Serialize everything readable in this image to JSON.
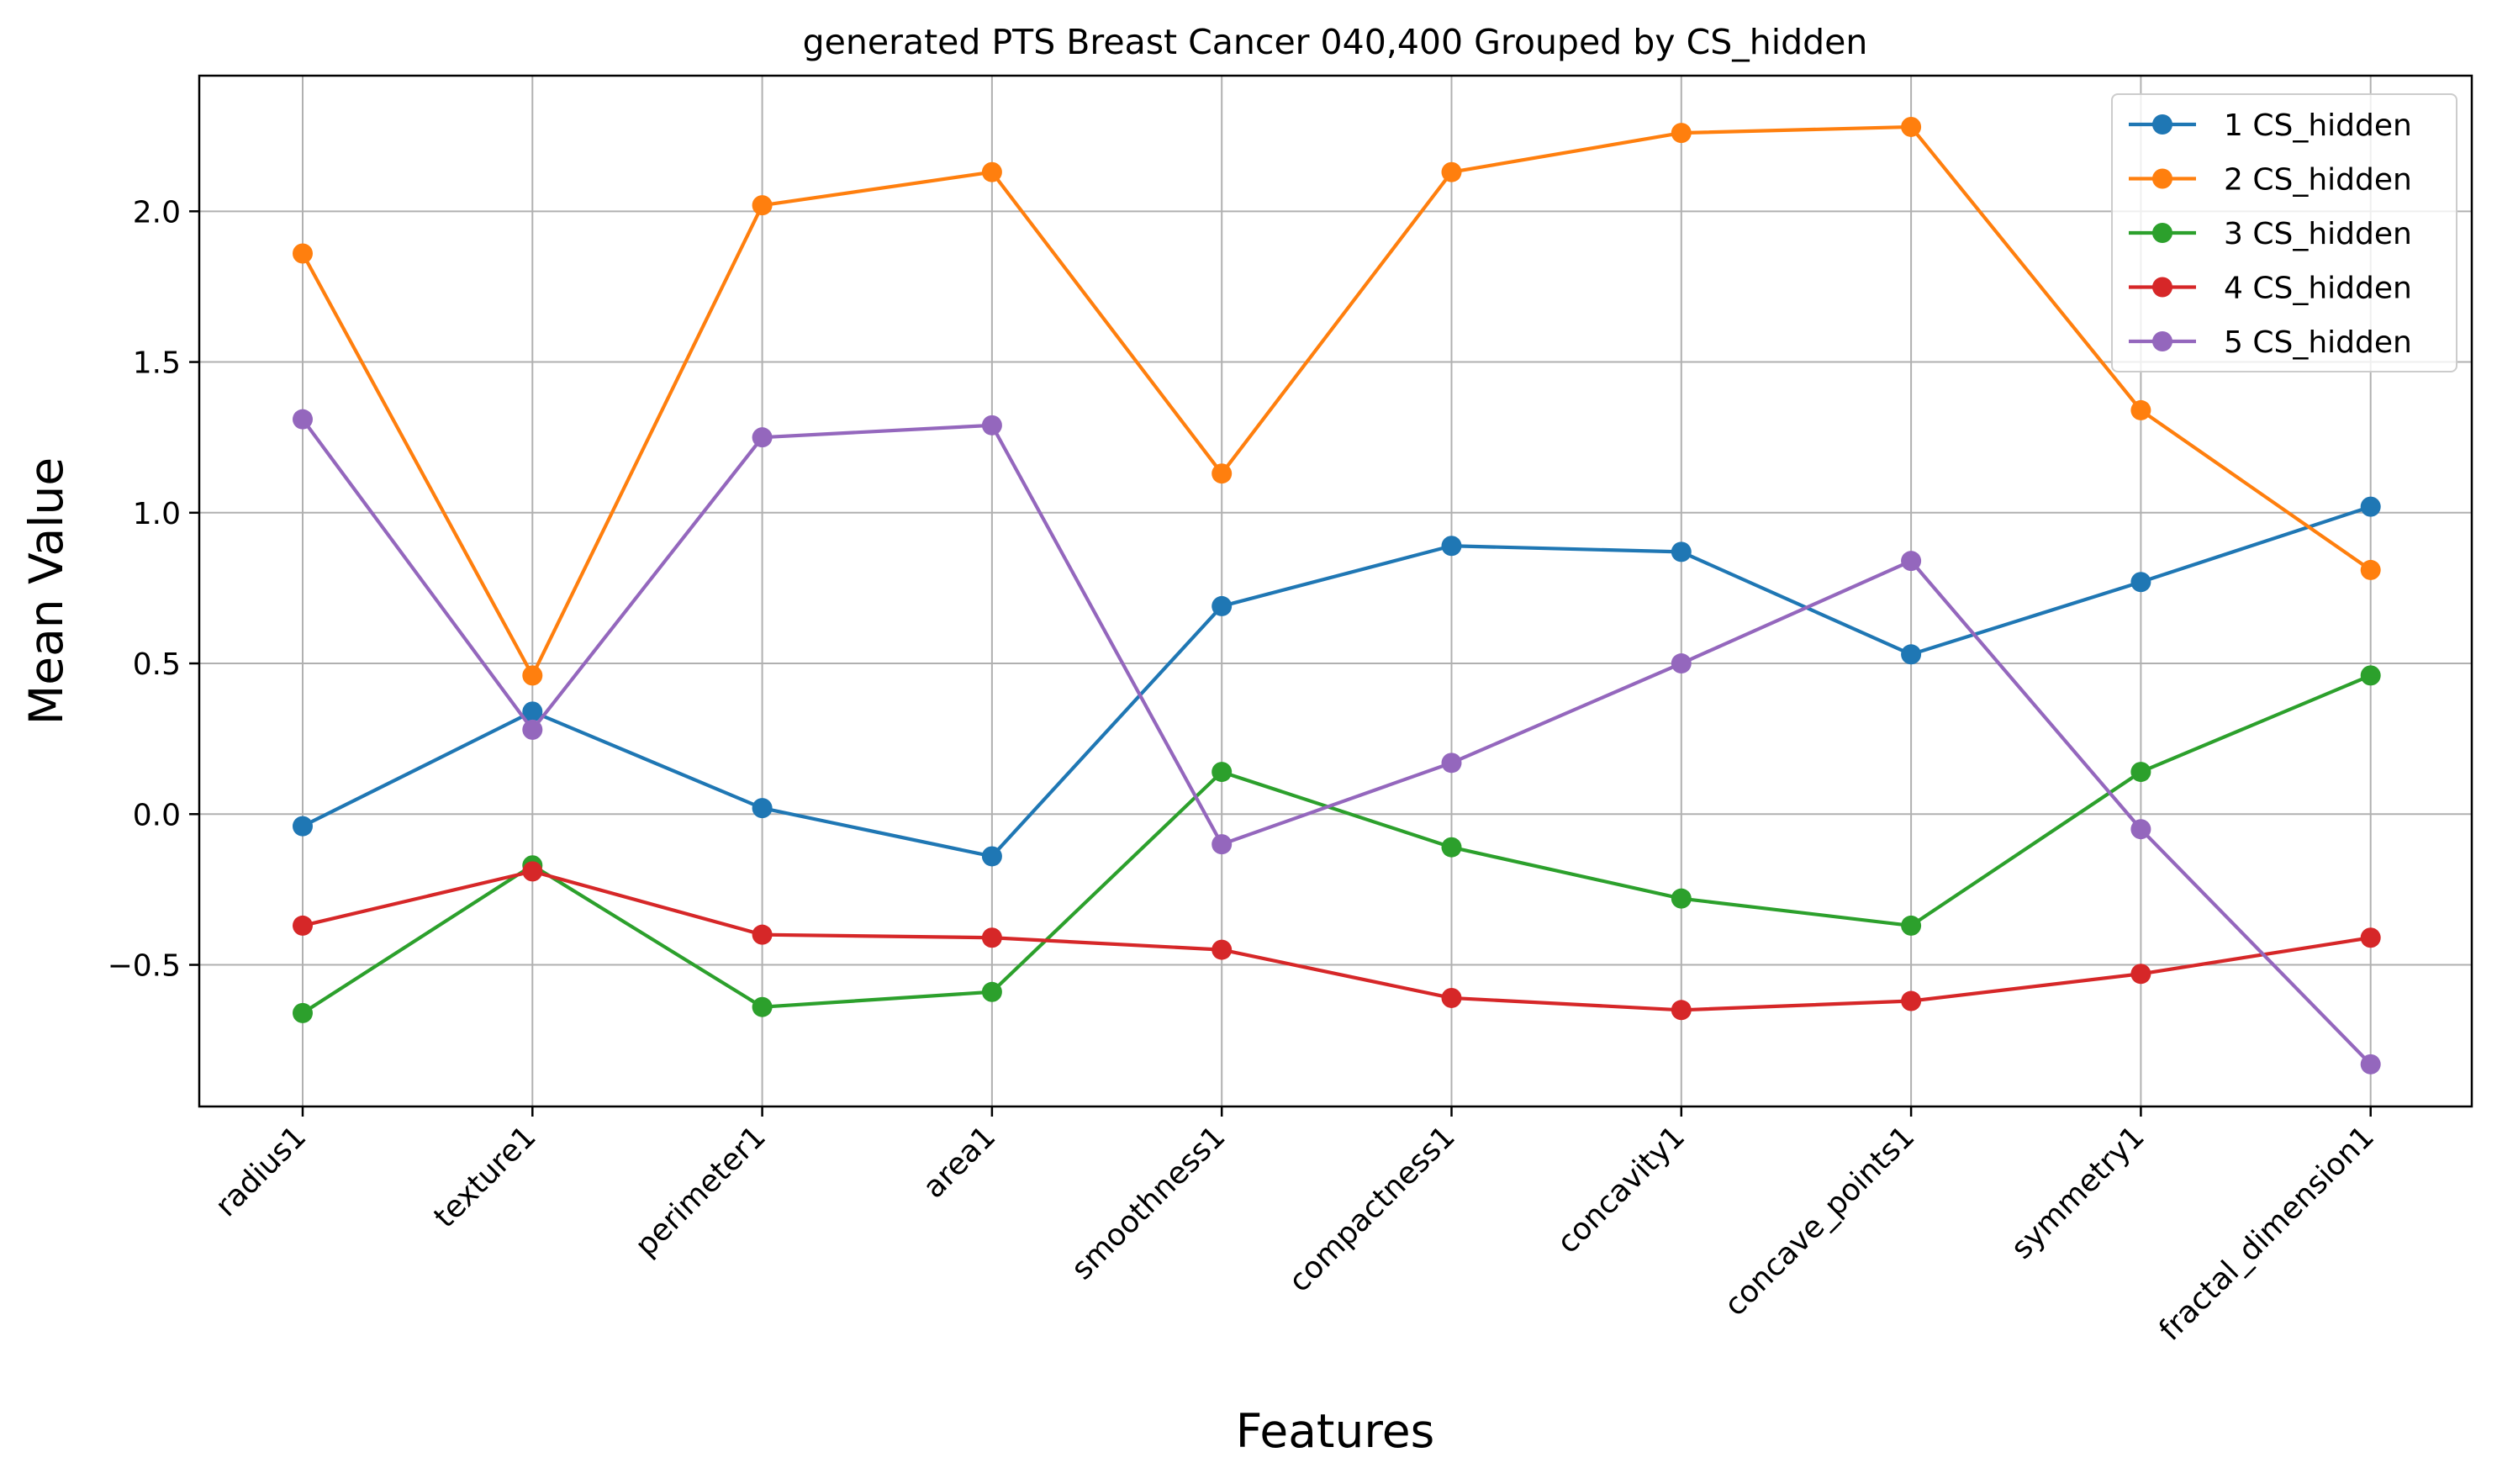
{
  "chart_data": {
    "type": "line",
    "title": "generated PTS Breast Cancer 040,400 Grouped by CS_hidden",
    "xlabel": "Features",
    "ylabel": "Mean Value",
    "categories": [
      "radius1",
      "texture1",
      "perimeter1",
      "area1",
      "smoothness1",
      "compactness1",
      "concavity1",
      "concave_points1",
      "symmetry1",
      "fractal_dimension1"
    ],
    "y_ticks": [
      -0.5,
      0.0,
      0.5,
      1.0,
      1.5,
      2.0
    ],
    "y_tick_labels": [
      "−0.5",
      "0.0",
      "0.5",
      "1.0",
      "1.5",
      "2.0"
    ],
    "ylim": [
      -0.97,
      2.45
    ],
    "grid": true,
    "legend_position": "top-right",
    "marker": "circle",
    "series": [
      {
        "name": "1 CS_hidden",
        "color": "#1f77b4",
        "values": [
          -0.04,
          0.34,
          0.02,
          -0.14,
          0.69,
          0.89,
          0.87,
          0.53,
          0.77,
          1.02
        ]
      },
      {
        "name": "2 CS_hidden",
        "color": "#ff7f0e",
        "values": [
          1.86,
          0.46,
          2.02,
          2.13,
          1.13,
          2.13,
          2.26,
          2.28,
          1.34,
          0.81
        ]
      },
      {
        "name": "3 CS_hidden",
        "color": "#2ca02c",
        "values": [
          -0.66,
          -0.17,
          -0.64,
          -0.59,
          0.14,
          -0.11,
          -0.28,
          -0.37,
          0.14,
          0.46
        ]
      },
      {
        "name": "4 CS_hidden",
        "color": "#d62728",
        "values": [
          -0.37,
          -0.19,
          -0.4,
          -0.41,
          -0.45,
          -0.61,
          -0.65,
          -0.62,
          -0.53,
          -0.41
        ]
      },
      {
        "name": "5 CS_hidden",
        "color": "#9467bd",
        "values": [
          1.31,
          0.28,
          1.25,
          1.29,
          -0.1,
          0.17,
          0.5,
          0.84,
          -0.05,
          -0.83
        ]
      }
    ]
  }
}
